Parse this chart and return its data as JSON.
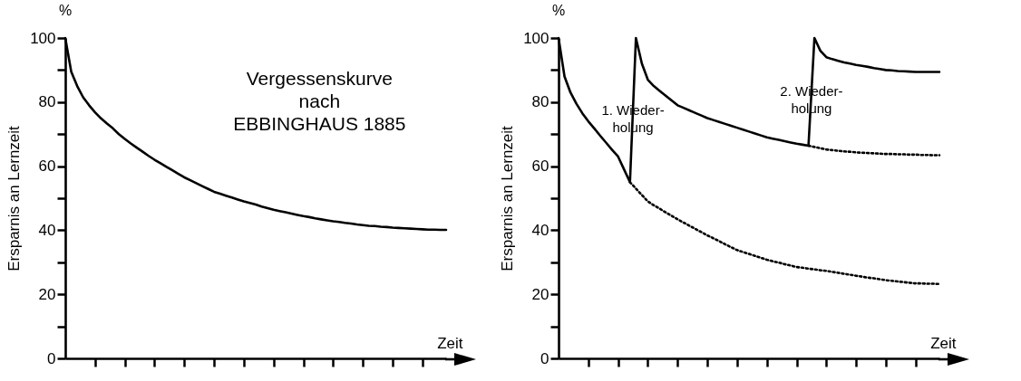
{
  "chart_data": [
    {
      "type": "line",
      "xlabel": "Zeit",
      "ylabel": "Ersparnis an Lernzeit",
      "annotations": [
        "%",
        "Vergessenskurve\nnach\nEBBINGHAUS 1885"
      ],
      "categories": [
        null,
        null,
        null,
        null,
        null,
        null,
        null,
        null,
        null,
        null,
        null,
        null,
        null,
        null,
        null,
        null,
        null,
        null,
        null,
        null,
        null,
        null,
        null,
        null,
        null,
        null,
        null,
        null,
        null,
        null,
        null,
        null,
        null,
        null,
        null,
        null,
        null,
        null,
        null,
        null,
        null,
        null,
        null,
        null,
        null,
        null,
        null,
        null,
        null,
        null,
        null,
        null,
        null,
        null,
        null,
        null,
        null,
        null,
        null,
        null,
        null,
        null,
        null,
        null,
        null
      ],
      "series": [
        {
          "color": "#000000",
          "line_style": "solid",
          "values": [
            100,
            89.5,
            85,
            81.5,
            79,
            76.8,
            74.9,
            73.3,
            71.8,
            70,
            68.5,
            67.1,
            65.8,
            64.5,
            63.2,
            62,
            60.9,
            59.8,
            58.7,
            57.6,
            56.5,
            55.6,
            54.7,
            53.8,
            52.9,
            52,
            51.4,
            50.8,
            50.2,
            49.6,
            49,
            48.5,
            48,
            47.4,
            46.9,
            46.4,
            46,
            45.6,
            45.2,
            44.8,
            44.4,
            44.1,
            43.7,
            43.4,
            43.1,
            42.8,
            42.6,
            42.3,
            42.1,
            41.8,
            41.6,
            41.4,
            41.3,
            41.1,
            41,
            40.8,
            40.7,
            40.6,
            40.5,
            40.4,
            40.3,
            40.2,
            40.2,
            40.1,
            40.1
          ]
        }
      ],
      "ylim": [
        0,
        100
      ],
      "yticks": [
        0,
        {
          "value": 10,
          "label": null
        },
        20,
        {
          "value": 30,
          "label": null
        },
        40,
        {
          "value": 50,
          "label": null
        },
        60,
        {
          "value": 70,
          "label": null
        },
        80,
        {
          "value": 90,
          "label": null
        },
        100
      ]
    },
    {
      "type": "line",
      "xlabel": "Zeit",
      "ylabel": "Ersparnis an Lernzeit",
      "annotations": [
        "%",
        "1. Wieder-\nholung",
        "2. Wieder-\nholung"
      ],
      "categories": [
        null,
        null,
        null,
        null,
        null,
        null,
        null,
        null,
        null,
        null,
        null,
        null,
        null,
        null,
        null,
        null,
        null,
        null,
        null,
        null,
        null,
        null,
        null,
        null,
        null,
        null,
        null,
        null,
        null,
        null,
        null,
        null,
        null,
        null,
        null,
        null,
        null,
        null,
        null,
        null,
        null,
        null,
        null,
        null,
        null,
        null,
        null,
        null,
        null,
        null,
        null,
        null,
        null,
        null,
        null,
        null,
        null,
        null,
        null,
        null,
        null,
        null,
        null,
        null,
        null
      ],
      "series": [
        {
          "color": "#000000",
          "line_style": "solid",
          "values": [
            100,
            88,
            83,
            79.5,
            76.5,
            74,
            71.8,
            69.5,
            67.3,
            65.1,
            63,
            59,
            55,
            100,
            92,
            87,
            85,
            83.5,
            82,
            80.5,
            79,
            78.2,
            77.4,
            76.6,
            75.8,
            75,
            74.4,
            73.8,
            73.2,
            72.6,
            72,
            71.4,
            70.8,
            70.2,
            69.6,
            69,
            68.6,
            68.2,
            67.8,
            67.4,
            67,
            66.7,
            66.4,
            100,
            96,
            94,
            93.4,
            92.9,
            92.4,
            92,
            91.6,
            91.3,
            91,
            90.6,
            90.3,
            90,
            89.9,
            89.7,
            89.6,
            89.5,
            89.4,
            89.4,
            89.4,
            89.4,
            89.4
          ]
        },
        {
          "color": "#000000",
          "line_style": "dotted",
          "values": [
            null,
            null,
            null,
            null,
            null,
            null,
            null,
            null,
            null,
            null,
            null,
            null,
            55,
            53,
            51,
            49,
            47.8,
            46.7,
            45.6,
            44.5,
            43.4,
            42.4,
            41.4,
            40.4,
            39.4,
            38.4,
            37.5,
            36.6,
            35.6,
            34.7,
            33.8,
            33.2,
            32.6,
            32,
            31.4,
            30.8,
            30.3,
            29.9,
            29.4,
            29,
            28.5,
            28.3,
            28,
            27.8,
            27.5,
            27.3,
            27,
            26.7,
            26.4,
            26.1,
            25.8,
            25.5,
            25.2,
            25,
            24.7,
            24.4,
            24.2,
            24,
            23.8,
            23.6,
            23.4,
            23.4,
            23.3,
            23.3,
            23.2
          ]
        },
        {
          "color": "#000000",
          "line_style": "dotted",
          "values": [
            null,
            null,
            null,
            null,
            null,
            null,
            null,
            null,
            null,
            null,
            null,
            null,
            null,
            null,
            null,
            null,
            null,
            null,
            null,
            null,
            null,
            null,
            null,
            null,
            null,
            null,
            null,
            null,
            null,
            null,
            null,
            null,
            null,
            null,
            null,
            null,
            null,
            null,
            null,
            null,
            null,
            null,
            66.4,
            66,
            65.6,
            65.2,
            65,
            64.8,
            64.6,
            64.5,
            64.3,
            64.2,
            64.1,
            64,
            63.9,
            63.8,
            63.8,
            63.7,
            63.7,
            63.6,
            63.6,
            63.5,
            63.5,
            63.4,
            63.4
          ]
        }
      ],
      "ylim": [
        0,
        100
      ],
      "yticks": [
        0,
        {
          "value": 10,
          "label": null
        },
        20,
        {
          "value": 30,
          "label": null
        },
        40,
        {
          "value": 50,
          "label": null
        },
        60,
        {
          "value": 70,
          "label": null
        },
        80,
        {
          "value": 90,
          "label": null
        },
        100
      ]
    }
  ]
}
